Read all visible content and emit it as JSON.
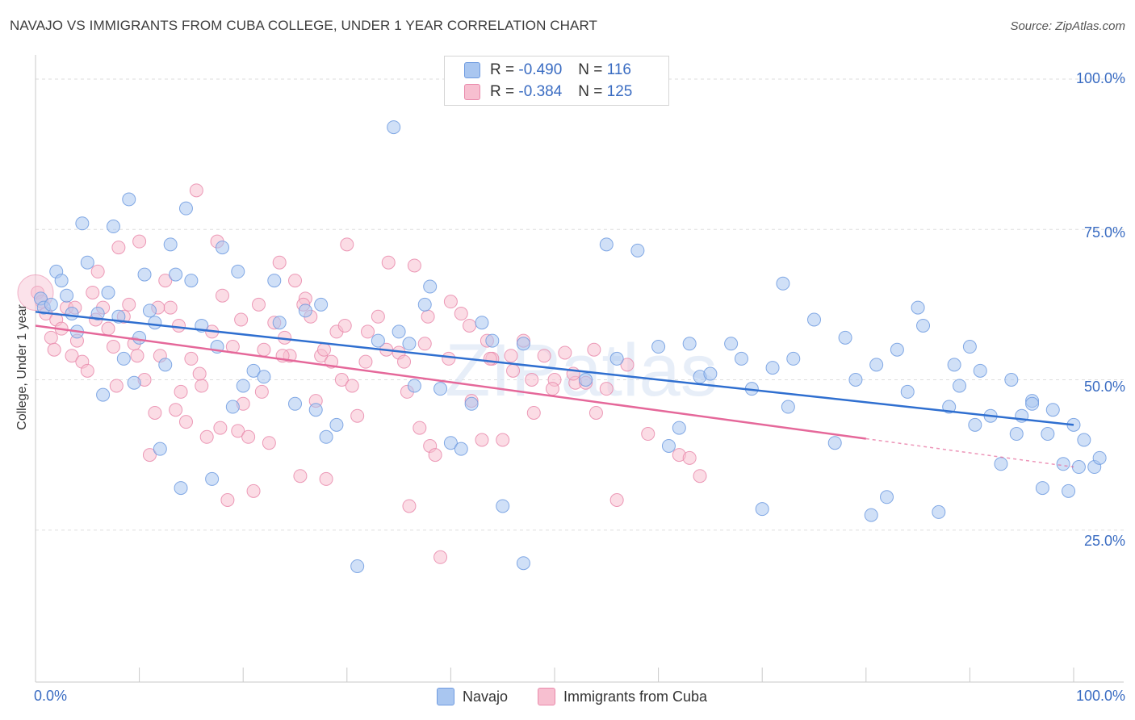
{
  "header": {
    "title": "NAVAJO VS IMMIGRANTS FROM CUBA COLLEGE, UNDER 1 YEAR CORRELATION CHART",
    "source": "Source: ZipAtlas.com"
  },
  "watermark": "ZIPatlas",
  "legend": {
    "rows": [
      {
        "r_label": "R =",
        "r_value": "-0.490",
        "n_label": "N =",
        "n_value": "116",
        "color": "#a9c6f0",
        "border": "#6f9be0"
      },
      {
        "r_label": "R =",
        "r_value": "-0.384",
        "n_label": "N =",
        "n_value": "125",
        "color": "#f7bfd0",
        "border": "#e98aab"
      }
    ]
  },
  "bottom_legend": {
    "navajo": "Navajo",
    "cuba": "Immigrants from Cuba"
  },
  "axes": {
    "ylabel": "College, Under 1 year",
    "x_min_label": "0.0%",
    "x_max_label": "100.0%",
    "y_ticks": [
      "100.0%",
      "75.0%",
      "50.0%",
      "25.0%"
    ]
  },
  "chart_data": {
    "type": "scatter",
    "title": "NAVAJO VS IMMIGRANTS FROM CUBA COLLEGE, UNDER 1 YEAR CORRELATION CHART",
    "xlabel": "",
    "ylabel": "College, Under 1 year",
    "xlim": [
      0,
      100
    ],
    "ylim": [
      0,
      100
    ],
    "grid": true,
    "legend_position": "top-center",
    "series": [
      {
        "name": "Navajo",
        "color": "#6f9be0",
        "fill": "#a9c6f0",
        "trend": {
          "x0": 0,
          "y0": 61.3,
          "x1": 100,
          "y1": 42.5,
          "solid_until": 100
        },
        "points": [
          [
            0.5,
            63.5
          ],
          [
            0.8,
            62
          ],
          [
            1.5,
            62.5
          ],
          [
            2,
            68
          ],
          [
            2.5,
            66.5
          ],
          [
            3,
            64
          ],
          [
            3.5,
            61
          ],
          [
            4,
            58
          ],
          [
            4.5,
            76
          ],
          [
            5,
            69.5
          ],
          [
            6,
            61
          ],
          [
            6.5,
            47.5
          ],
          [
            7,
            64.5
          ],
          [
            7.5,
            75.5
          ],
          [
            8,
            60.5
          ],
          [
            8.5,
            53.5
          ],
          [
            9,
            80
          ],
          [
            9.5,
            49.5
          ],
          [
            10,
            57
          ],
          [
            10.5,
            67.5
          ],
          [
            11,
            61.5
          ],
          [
            11.5,
            59.5
          ],
          [
            12,
            38.5
          ],
          [
            12.5,
            52.5
          ],
          [
            13,
            72.5
          ],
          [
            13.5,
            67.5
          ],
          [
            14,
            32
          ],
          [
            14.5,
            78.5
          ],
          [
            15,
            66.5
          ],
          [
            16,
            59
          ],
          [
            17,
            33.5
          ],
          [
            17.5,
            55.5
          ],
          [
            18,
            72
          ],
          [
            19,
            45.5
          ],
          [
            19.5,
            68
          ],
          [
            20,
            49
          ],
          [
            21,
            51.5
          ],
          [
            22,
            50.5
          ],
          [
            23,
            66.5
          ],
          [
            23.5,
            59.5
          ],
          [
            25,
            46
          ],
          [
            26,
            61.5
          ],
          [
            27,
            45
          ],
          [
            27.5,
            62.5
          ],
          [
            28,
            40.5
          ],
          [
            29,
            42.5
          ],
          [
            33,
            56.5
          ],
          [
            34.5,
            92
          ],
          [
            35,
            58
          ],
          [
            36,
            56
          ],
          [
            36.5,
            49
          ],
          [
            37.5,
            62.5
          ],
          [
            38,
            65.5
          ],
          [
            39,
            48.5
          ],
          [
            40,
            39.5
          ],
          [
            41,
            38.5
          ],
          [
            43,
            59.5
          ],
          [
            44,
            56.5
          ],
          [
            45,
            29
          ],
          [
            47,
            56
          ],
          [
            53,
            50
          ],
          [
            55,
            72.5
          ],
          [
            56,
            53.5
          ],
          [
            58,
            71.5
          ],
          [
            60,
            55.5
          ],
          [
            61,
            39
          ],
          [
            62,
            42
          ],
          [
            63,
            56
          ],
          [
            64,
            50.5
          ],
          [
            65,
            51
          ],
          [
            67,
            56
          ],
          [
            68,
            53.5
          ],
          [
            69,
            48.5
          ],
          [
            70,
            28.5
          ],
          [
            71,
            52
          ],
          [
            72,
            66
          ],
          [
            72.5,
            45.5
          ],
          [
            73,
            53.5
          ],
          [
            75,
            60
          ],
          [
            77,
            39.5
          ],
          [
            78,
            57
          ],
          [
            79,
            50
          ],
          [
            80.5,
            27.5
          ],
          [
            81,
            52.5
          ],
          [
            82,
            30.5
          ],
          [
            83,
            55
          ],
          [
            84,
            48
          ],
          [
            85,
            62
          ],
          [
            85.5,
            59
          ],
          [
            87,
            28
          ],
          [
            88,
            45.5
          ],
          [
            88.5,
            52.5
          ],
          [
            89,
            49
          ],
          [
            90,
            55.5
          ],
          [
            90.5,
            42.5
          ],
          [
            91,
            51.5
          ],
          [
            92,
            44
          ],
          [
            93,
            36
          ],
          [
            94,
            50
          ],
          [
            94.5,
            41
          ],
          [
            95,
            44
          ],
          [
            96,
            46.5
          ],
          [
            97,
            32
          ],
          [
            97.5,
            41
          ],
          [
            98,
            45
          ],
          [
            99,
            36
          ],
          [
            99.5,
            31.5
          ],
          [
            100,
            42.5
          ],
          [
            100.5,
            35.5
          ],
          [
            101,
            40
          ],
          [
            102,
            35.5
          ],
          [
            102.5,
            37
          ],
          [
            31,
            19
          ],
          [
            47,
            19.5
          ],
          [
            42,
            46
          ],
          [
            96,
            46
          ]
        ]
      },
      {
        "name": "Immigrants from Cuba",
        "color": "#e98aab",
        "fill": "#f7bfd0",
        "trend": {
          "x0": 0,
          "y0": 59,
          "x1": 100,
          "y1": 35.5,
          "solid_until": 80
        },
        "points": [
          [
            0.2,
            64.5
          ],
          [
            0.6,
            63
          ],
          [
            1,
            61
          ],
          [
            1.5,
            57
          ],
          [
            2,
            60
          ],
          [
            2.5,
            58.5
          ],
          [
            3,
            62
          ],
          [
            3.5,
            54
          ],
          [
            4,
            56.5
          ],
          [
            4.5,
            53
          ],
          [
            5,
            51.5
          ],
          [
            5.5,
            64.5
          ],
          [
            6,
            68
          ],
          [
            6.5,
            62
          ],
          [
            7,
            58.5
          ],
          [
            7.5,
            55.5
          ],
          [
            8,
            72
          ],
          [
            8.5,
            60.5
          ],
          [
            9,
            62.5
          ],
          [
            9.5,
            56
          ],
          [
            10,
            73
          ],
          [
            10.5,
            50
          ],
          [
            11,
            37.5
          ],
          [
            11.5,
            44.5
          ],
          [
            12,
            54
          ],
          [
            12.5,
            66.5
          ],
          [
            13,
            62
          ],
          [
            13.5,
            45
          ],
          [
            14,
            48
          ],
          [
            14.5,
            43
          ],
          [
            15,
            53.5
          ],
          [
            15.5,
            81.5
          ],
          [
            16,
            49
          ],
          [
            16.5,
            40.5
          ],
          [
            17,
            58
          ],
          [
            17.5,
            73
          ],
          [
            18,
            64
          ],
          [
            18.5,
            30
          ],
          [
            19,
            55.5
          ],
          [
            19.5,
            41.5
          ],
          [
            20,
            46
          ],
          [
            20.5,
            40.5
          ],
          [
            21,
            31.5
          ],
          [
            21.5,
            62.5
          ],
          [
            22,
            55
          ],
          [
            22.5,
            39.5
          ],
          [
            23,
            59.5
          ],
          [
            23.5,
            69.5
          ],
          [
            24,
            57
          ],
          [
            24.5,
            54
          ],
          [
            25,
            66.5
          ],
          [
            25.5,
            34
          ],
          [
            26,
            63.5
          ],
          [
            26.5,
            60.5
          ],
          [
            27,
            46.5
          ],
          [
            27.5,
            54
          ],
          [
            28,
            33.5
          ],
          [
            28.5,
            53
          ],
          [
            29,
            58
          ],
          [
            29.5,
            50
          ],
          [
            30,
            72.5
          ],
          [
            30.5,
            49
          ],
          [
            31,
            44
          ],
          [
            32,
            58
          ],
          [
            33,
            60.5
          ],
          [
            34,
            69.5
          ],
          [
            35,
            54.5
          ],
          [
            35.5,
            53
          ],
          [
            36,
            29
          ],
          [
            36.5,
            69
          ],
          [
            37,
            42
          ],
          [
            37.5,
            56
          ],
          [
            38,
            39
          ],
          [
            38.5,
            37.5
          ],
          [
            39,
            20.5
          ],
          [
            40,
            63
          ],
          [
            41,
            61
          ],
          [
            42,
            46.5
          ],
          [
            43,
            40
          ],
          [
            43.5,
            56.5
          ],
          [
            44,
            53.5
          ],
          [
            45,
            40
          ],
          [
            46,
            51.5
          ],
          [
            47,
            56.5
          ],
          [
            48,
            44.5
          ],
          [
            49,
            54
          ],
          [
            50,
            50
          ],
          [
            51,
            54.5
          ],
          [
            52,
            49.5
          ],
          [
            53,
            49.5
          ],
          [
            54,
            44.5
          ],
          [
            55,
            48.5
          ],
          [
            56,
            30
          ],
          [
            57,
            52.5
          ],
          [
            59,
            41
          ],
          [
            62,
            37.5
          ],
          [
            63,
            37
          ],
          [
            64,
            34
          ],
          [
            1.8,
            55
          ],
          [
            3.8,
            62
          ],
          [
            5.8,
            60
          ],
          [
            7.8,
            49
          ],
          [
            9.8,
            54
          ],
          [
            11.8,
            62
          ],
          [
            13.8,
            59
          ],
          [
            15.8,
            51
          ],
          [
            17.8,
            42
          ],
          [
            19.8,
            60
          ],
          [
            21.8,
            48
          ],
          [
            23.8,
            54
          ],
          [
            25.8,
            62.5
          ],
          [
            27.8,
            55
          ],
          [
            29.8,
            59
          ],
          [
            31.8,
            53
          ],
          [
            33.8,
            55
          ],
          [
            35.8,
            48
          ],
          [
            37.8,
            60.5
          ],
          [
            39.8,
            53.5
          ],
          [
            41.8,
            59
          ],
          [
            43.8,
            53.5
          ],
          [
            45.8,
            54
          ],
          [
            47.8,
            50
          ],
          [
            49.8,
            48.5
          ],
          [
            51.8,
            51
          ],
          [
            53.8,
            55
          ]
        ]
      }
    ]
  }
}
